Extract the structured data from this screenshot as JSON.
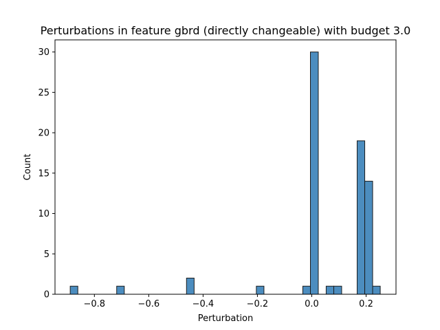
{
  "chart_data": {
    "type": "bar",
    "title": "Perturbations in feature gbrd (directly changeable) with budget 3.0",
    "xlabel": "Perturbation",
    "ylabel": "Count",
    "xlim": [
      -0.945,
      0.31
    ],
    "ylim": [
      0,
      31.5
    ],
    "xticks": [
      -0.8,
      -0.6,
      -0.4,
      -0.2,
      0.0,
      0.2
    ],
    "xtick_labels": [
      "−0.8",
      "−0.6",
      "−0.4",
      "−0.2",
      "0.0",
      "0.2"
    ],
    "yticks": [
      0,
      5,
      10,
      15,
      20,
      25,
      30
    ],
    "ytick_labels": [
      "0",
      "5",
      "10",
      "15",
      "20",
      "25",
      "30"
    ],
    "bar_color": "#4c8dbf",
    "bar_edge_color": "#1a1a1a",
    "bins": [
      {
        "x0": -0.889,
        "x1": -0.861,
        "count": 1
      },
      {
        "x0": -0.718,
        "x1": -0.69,
        "count": 1
      },
      {
        "x0": -0.461,
        "x1": -0.433,
        "count": 2
      },
      {
        "x0": -0.204,
        "x1": -0.176,
        "count": 1
      },
      {
        "x0": -0.033,
        "x1": -0.005,
        "count": 1
      },
      {
        "x0": -0.005,
        "x1": 0.024,
        "count": 30
      },
      {
        "x0": 0.053,
        "x1": 0.081,
        "count": 1
      },
      {
        "x0": 0.081,
        "x1": 0.11,
        "count": 1
      },
      {
        "x0": 0.167,
        "x1": 0.195,
        "count": 19
      },
      {
        "x0": 0.195,
        "x1": 0.224,
        "count": 14
      },
      {
        "x0": 0.224,
        "x1": 0.252,
        "count": 1
      }
    ],
    "grid": false,
    "legend": "none"
  }
}
